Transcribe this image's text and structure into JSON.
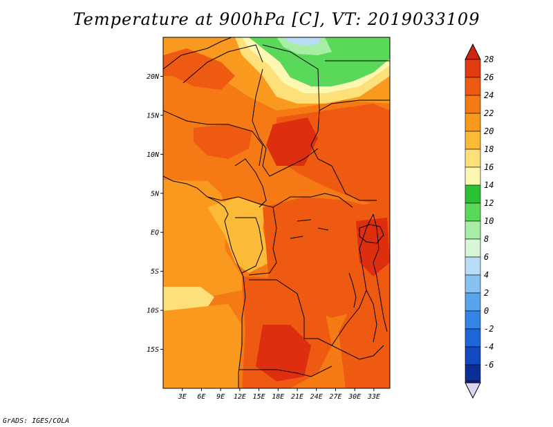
{
  "title": "Temperature at 900hPa [C], VT: 2019033109",
  "credit": "GrADS: IGES/COLA",
  "map": {
    "lon_range": [
      0,
      35.5
    ],
    "lat_range": [
      -20,
      25
    ],
    "lat_ticks": [
      "20N",
      "15N",
      "10N",
      "5N",
      "EQ",
      "5S",
      "10S",
      "15S"
    ],
    "lat_values": [
      20,
      15,
      10,
      5,
      0,
      -5,
      -10,
      -15
    ],
    "lon_ticks": [
      "3E",
      "6E",
      "9E",
      "12E",
      "15E",
      "18E",
      "21E",
      "24E",
      "27E",
      "30E",
      "33E"
    ],
    "lon_values": [
      3,
      6,
      9,
      12,
      15,
      18,
      21,
      24,
      27,
      30,
      33
    ]
  },
  "colorbar": {
    "labels": [
      "28",
      "26",
      "24",
      "22",
      "20",
      "18",
      "16",
      "14",
      "12",
      "10",
      "8",
      "6",
      "4",
      "2",
      "0",
      "-2",
      "-4",
      "-6"
    ],
    "bins": [
      {
        "color": "#e33a10"
      },
      {
        "color": "#ef5a12"
      },
      {
        "color": "#f57a16"
      },
      {
        "color": "#f99a1f"
      },
      {
        "color": "#fbba38"
      },
      {
        "color": "#fde07a"
      },
      {
        "color": "#fcf8b4"
      },
      {
        "color": "#2cc033"
      },
      {
        "color": "#5ad85a"
      },
      {
        "color": "#a8eda4"
      },
      {
        "color": "#d9f7d8"
      },
      {
        "color": "#b7ddf7"
      },
      {
        "color": "#88c2f2"
      },
      {
        "color": "#5aa4ee"
      },
      {
        "color": "#3484e6"
      },
      {
        "color": "#1d66d8"
      },
      {
        "color": "#1249c1"
      },
      {
        "color": "#0b2f96"
      }
    ],
    "top_arrow_color": "#cd2510",
    "bottom_arrow_color": "#dcd4f2",
    "bottom_bin_color": "#0a1f6e"
  },
  "palette": {
    "t27": "#dd2e10",
    "t25": "#ef5a12",
    "t23": "#f57a16",
    "t21": "#f99a1f",
    "t19": "#fbba38",
    "t17": "#fde07a",
    "t16": "#fcf8b4",
    "t13": "#5ad85a",
    "t11": "#a8eda4",
    "t9": "#d9f7d8",
    "t7": "#b7ddf7"
  }
}
